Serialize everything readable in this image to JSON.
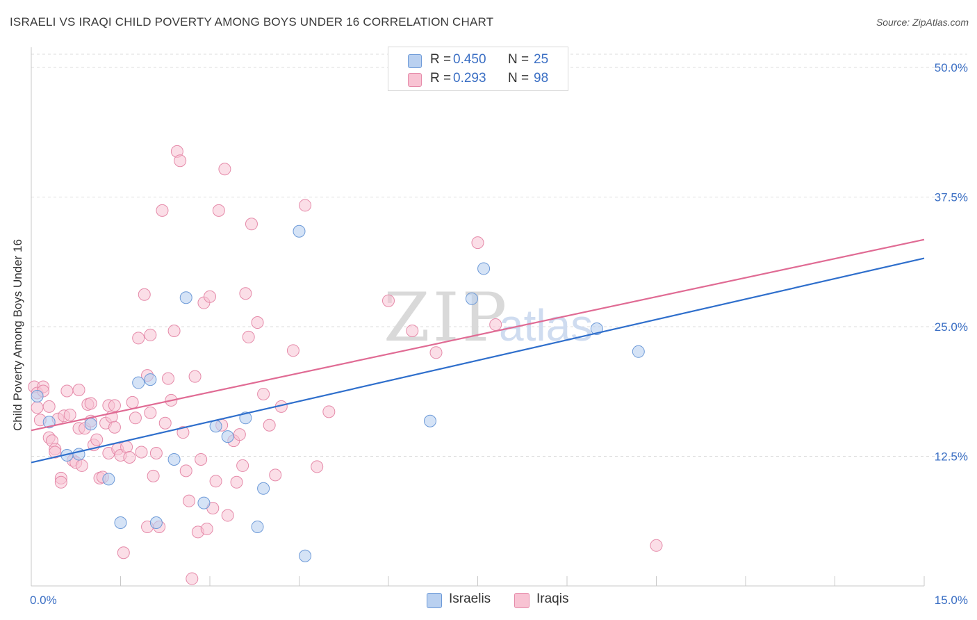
{
  "title": "ISRAELI VS IRAQI CHILD POVERTY AMONG BOYS UNDER 16 CORRELATION CHART",
  "source": "Source: ZipAtlas.com",
  "watermark": {
    "zip": "ZIP",
    "atlas": "atlas"
  },
  "legend_top": {
    "rows": [
      {
        "r_label": "R =",
        "r_value": "0.450",
        "n_label": "N =",
        "n_value": "25"
      },
      {
        "r_label": "R =",
        "r_value": "0.293",
        "n_label": "N =",
        "n_value": "98"
      }
    ]
  },
  "legend_bottom": {
    "items": [
      "Israelis",
      "Iraqis"
    ]
  },
  "colors": {
    "israelis_fill": "#b9d0f0",
    "israelis_stroke": "#6d9ad8",
    "israelis_line": "#2f6fcc",
    "iraqis_fill": "#f8c3d3",
    "iraqis_stroke": "#e58aa9",
    "iraqis_line": "#e06b94",
    "axis_text": "#3b6fc4",
    "grid": "#dddddd"
  },
  "chart_data": {
    "type": "scatter",
    "title": "ISRAELI VS IRAQI CHILD POVERTY AMONG BOYS UNDER 16 CORRELATION CHART",
    "xlabel": "",
    "ylabel": "Child Poverty Among Boys Under 16",
    "xlim": [
      0,
      15
    ],
    "ylim": [
      0,
      50
    ],
    "x_tick_labels": [
      "0.0%",
      "15.0%"
    ],
    "y_ticks": [
      12.5,
      25.0,
      37.5,
      50.0
    ],
    "y_tick_labels": [
      "12.5%",
      "25.0%",
      "37.5%",
      "50.0%"
    ],
    "series": [
      {
        "name": "Israelis",
        "R": 0.45,
        "N": 25,
        "trend": {
          "x": [
            0,
            15
          ],
          "y": [
            11.9,
            31.6
          ]
        },
        "points": [
          [
            0.1,
            18.3
          ],
          [
            0.3,
            15.8
          ],
          [
            0.6,
            12.6
          ],
          [
            0.8,
            12.7
          ],
          [
            1.0,
            15.6
          ],
          [
            1.3,
            10.3
          ],
          [
            1.5,
            6.1
          ],
          [
            1.8,
            19.6
          ],
          [
            2.0,
            19.9
          ],
          [
            2.1,
            6.1
          ],
          [
            2.4,
            12.2
          ],
          [
            2.6,
            27.8
          ],
          [
            2.9,
            8.0
          ],
          [
            3.1,
            15.4
          ],
          [
            3.3,
            14.4
          ],
          [
            3.6,
            16.2
          ],
          [
            3.8,
            5.7
          ],
          [
            3.9,
            9.4
          ],
          [
            4.5,
            34.2
          ],
          [
            4.6,
            2.9
          ],
          [
            6.7,
            15.9
          ],
          [
            7.4,
            27.7
          ],
          [
            7.6,
            30.6
          ],
          [
            9.5,
            24.8
          ],
          [
            10.2,
            22.6
          ]
        ]
      },
      {
        "name": "Iraqis",
        "R": 0.293,
        "N": 98,
        "trend": {
          "x": [
            0,
            15
          ],
          "y": [
            15.0,
            33.4
          ]
        },
        "points": [
          [
            0.05,
            19.2
          ],
          [
            0.1,
            18.6
          ],
          [
            0.1,
            17.2
          ],
          [
            0.15,
            16.0
          ],
          [
            0.2,
            19.2
          ],
          [
            0.2,
            18.8
          ],
          [
            0.3,
            17.3
          ],
          [
            0.3,
            14.3
          ],
          [
            0.35,
            14.0
          ],
          [
            0.4,
            13.2
          ],
          [
            0.4,
            12.9
          ],
          [
            0.45,
            16.1
          ],
          [
            0.5,
            10.4
          ],
          [
            0.55,
            16.4
          ],
          [
            0.6,
            18.8
          ],
          [
            0.65,
            16.5
          ],
          [
            0.7,
            12.1
          ],
          [
            0.75,
            11.9
          ],
          [
            0.8,
            15.2
          ],
          [
            0.8,
            18.9
          ],
          [
            0.85,
            11.6
          ],
          [
            0.9,
            15.2
          ],
          [
            0.95,
            17.5
          ],
          [
            1.0,
            17.6
          ],
          [
            1.0,
            15.9
          ],
          [
            1.05,
            13.6
          ],
          [
            1.1,
            14.1
          ],
          [
            1.15,
            10.4
          ],
          [
            1.2,
            10.5
          ],
          [
            1.25,
            15.7
          ],
          [
            1.3,
            17.4
          ],
          [
            1.3,
            12.8
          ],
          [
            1.35,
            16.3
          ],
          [
            1.4,
            15.3
          ],
          [
            1.4,
            17.4
          ],
          [
            1.45,
            13.2
          ],
          [
            1.5,
            12.6
          ],
          [
            1.55,
            3.2
          ],
          [
            1.6,
            13.4
          ],
          [
            1.65,
            12.4
          ],
          [
            1.7,
            17.7
          ],
          [
            1.75,
            16.2
          ],
          [
            1.8,
            23.9
          ],
          [
            1.85,
            12.9
          ],
          [
            1.9,
            28.1
          ],
          [
            1.95,
            20.3
          ],
          [
            2.0,
            16.7
          ],
          [
            2.05,
            10.6
          ],
          [
            2.1,
            12.8
          ],
          [
            2.15,
            5.7
          ],
          [
            2.2,
            36.2
          ],
          [
            2.25,
            15.7
          ],
          [
            2.3,
            20.0
          ],
          [
            2.35,
            17.9
          ],
          [
            2.4,
            24.6
          ],
          [
            2.45,
            41.9
          ],
          [
            2.5,
            41.0
          ],
          [
            2.55,
            14.8
          ],
          [
            2.6,
            11.1
          ],
          [
            2.65,
            8.2
          ],
          [
            2.7,
            0.7
          ],
          [
            2.75,
            20.2
          ],
          [
            2.8,
            5.2
          ],
          [
            2.85,
            12.2
          ],
          [
            2.9,
            27.3
          ],
          [
            2.95,
            5.5
          ],
          [
            3.0,
            27.9
          ],
          [
            3.05,
            7.5
          ],
          [
            3.1,
            10.1
          ],
          [
            3.15,
            36.2
          ],
          [
            3.2,
            15.5
          ],
          [
            3.25,
            40.2
          ],
          [
            3.3,
            6.8
          ],
          [
            3.4,
            14.0
          ],
          [
            3.45,
            10.0
          ],
          [
            3.5,
            14.6
          ],
          [
            3.55,
            11.6
          ],
          [
            3.6,
            28.2
          ],
          [
            3.65,
            24.0
          ],
          [
            3.7,
            34.9
          ],
          [
            3.8,
            25.4
          ],
          [
            3.9,
            18.5
          ],
          [
            4.0,
            15.5
          ],
          [
            4.1,
            10.7
          ],
          [
            4.2,
            17.3
          ],
          [
            4.4,
            22.7
          ],
          [
            4.6,
            36.7
          ],
          [
            4.8,
            11.5
          ],
          [
            5.0,
            16.8
          ],
          [
            6.0,
            27.5
          ],
          [
            6.4,
            24.6
          ],
          [
            6.8,
            22.5
          ],
          [
            7.5,
            33.1
          ],
          [
            7.8,
            25.2
          ],
          [
            10.5,
            3.9
          ],
          [
            0.5,
            10.0
          ],
          [
            1.95,
            5.7
          ],
          [
            2.0,
            24.2
          ]
        ]
      }
    ]
  }
}
